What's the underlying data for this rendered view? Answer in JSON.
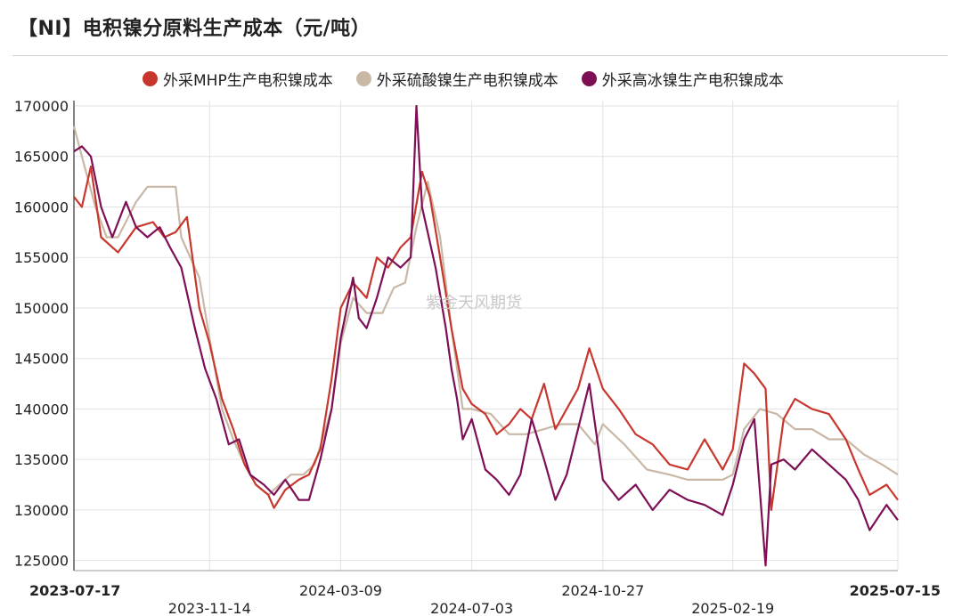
{
  "title": "【NI】电积镍分原料生产成本（元/吨）",
  "watermark": "紫金天风期货",
  "colors": {
    "mhp": "#c8372d",
    "sulfate": "#c9b8a6",
    "matte": "#7d0f55"
  },
  "chart_data": {
    "type": "line",
    "ylim": [
      124000,
      170000
    ],
    "y_ticks": [
      125000,
      130000,
      135000,
      140000,
      145000,
      150000,
      155000,
      160000,
      165000,
      170000
    ],
    "x_ticks_top": [
      "2023-07-17",
      "2024-03-09",
      "2024-10-27",
      "2025-07-15"
    ],
    "x_ticks_bottom": [
      "2023-11-14",
      "2024-07-03",
      "2025-02-19"
    ],
    "series": [
      {
        "name": "外采MHP生产电积镍成本",
        "color": "#c8372d",
        "points": [
          [
            "2023-07-17",
            161000
          ],
          [
            "2023-07-24",
            160000
          ],
          [
            "2023-08-01",
            164000
          ],
          [
            "2023-08-10",
            157000
          ],
          [
            "2023-08-25",
            155500
          ],
          [
            "2023-09-10",
            158000
          ],
          [
            "2023-09-25",
            158500
          ],
          [
            "2023-10-05",
            157000
          ],
          [
            "2023-10-15",
            157500
          ],
          [
            "2023-10-25",
            159000
          ],
          [
            "2023-11-05",
            150000
          ],
          [
            "2023-11-14",
            146500
          ],
          [
            "2023-11-25",
            141000
          ],
          [
            "2023-12-05",
            138000
          ],
          [
            "2023-12-15",
            134500
          ],
          [
            "2023-12-25",
            132500
          ],
          [
            "2024-01-05",
            131500
          ],
          [
            "2024-01-10",
            130200
          ],
          [
            "2024-01-20",
            132000
          ],
          [
            "2024-02-01",
            133000
          ],
          [
            "2024-02-10",
            133500
          ],
          [
            "2024-02-20",
            136000
          ],
          [
            "2024-03-01",
            143000
          ],
          [
            "2024-03-09",
            150000
          ],
          [
            "2024-03-20",
            152500
          ],
          [
            "2024-04-01",
            151000
          ],
          [
            "2024-04-10",
            155000
          ],
          [
            "2024-04-20",
            154000
          ],
          [
            "2024-05-01",
            156000
          ],
          [
            "2024-05-10",
            157000
          ],
          [
            "2024-05-20",
            163500
          ],
          [
            "2024-05-27",
            161000
          ],
          [
            "2024-06-05",
            155000
          ],
          [
            "2024-06-15",
            148000
          ],
          [
            "2024-06-25",
            142000
          ],
          [
            "2024-07-03",
            140500
          ],
          [
            "2024-07-15",
            139500
          ],
          [
            "2024-07-25",
            137500
          ],
          [
            "2024-08-05",
            138500
          ],
          [
            "2024-08-15",
            140000
          ],
          [
            "2024-08-25",
            139000
          ],
          [
            "2024-09-05",
            142500
          ],
          [
            "2024-09-15",
            138000
          ],
          [
            "2024-09-25",
            140000
          ],
          [
            "2024-10-05",
            142000
          ],
          [
            "2024-10-15",
            146000
          ],
          [
            "2024-10-27",
            142000
          ],
          [
            "2024-11-10",
            140000
          ],
          [
            "2024-11-25",
            137500
          ],
          [
            "2024-12-10",
            136500
          ],
          [
            "2024-12-25",
            134500
          ],
          [
            "2025-01-10",
            134000
          ],
          [
            "2025-01-25",
            137000
          ],
          [
            "2025-02-10",
            134000
          ],
          [
            "2025-02-19",
            136000
          ],
          [
            "2025-03-01",
            144500
          ],
          [
            "2025-03-10",
            143500
          ],
          [
            "2025-03-20",
            142000
          ],
          [
            "2025-03-25",
            130000
          ],
          [
            "2025-04-05",
            139000
          ],
          [
            "2025-04-15",
            141000
          ],
          [
            "2025-04-30",
            140000
          ],
          [
            "2025-05-15",
            139500
          ],
          [
            "2025-05-30",
            137000
          ],
          [
            "2025-06-10",
            134000
          ],
          [
            "2025-06-20",
            131500
          ],
          [
            "2025-07-05",
            132500
          ],
          [
            "2025-07-15",
            131000
          ]
        ]
      },
      {
        "name": "外采硫酸镍生产电积镍成本",
        "color": "#c9b8a6",
        "points": [
          [
            "2023-07-17",
            168000
          ],
          [
            "2023-07-24",
            165000
          ],
          [
            "2023-08-05",
            160000
          ],
          [
            "2023-08-15",
            157000
          ],
          [
            "2023-08-25",
            157000
          ],
          [
            "2023-09-10",
            160500
          ],
          [
            "2023-09-20",
            162000
          ],
          [
            "2023-10-05",
            162000
          ],
          [
            "2023-10-15",
            162000
          ],
          [
            "2023-10-20",
            157000
          ],
          [
            "2023-11-05",
            153000
          ],
          [
            "2023-11-14",
            147000
          ],
          [
            "2023-11-25",
            140000
          ],
          [
            "2023-12-05",
            137000
          ],
          [
            "2023-12-15",
            134500
          ],
          [
            "2023-12-25",
            132500
          ],
          [
            "2024-01-05",
            131500
          ],
          [
            "2024-01-15",
            132500
          ],
          [
            "2024-01-25",
            133500
          ],
          [
            "2024-02-05",
            133500
          ],
          [
            "2024-02-15",
            134500
          ],
          [
            "2024-03-01",
            140000
          ],
          [
            "2024-03-09",
            146500
          ],
          [
            "2024-03-20",
            151000
          ],
          [
            "2024-04-01",
            149500
          ],
          [
            "2024-04-15",
            149500
          ],
          [
            "2024-04-25",
            152000
          ],
          [
            "2024-05-05",
            152500
          ],
          [
            "2024-05-15",
            158000
          ],
          [
            "2024-05-25",
            162500
          ],
          [
            "2024-06-05",
            157000
          ],
          [
            "2024-06-15",
            148000
          ],
          [
            "2024-06-25",
            140000
          ],
          [
            "2024-07-03",
            140000
          ],
          [
            "2024-07-20",
            139500
          ],
          [
            "2024-08-05",
            137500
          ],
          [
            "2024-08-20",
            137500
          ],
          [
            "2024-09-05",
            138000
          ],
          [
            "2024-09-20",
            138500
          ],
          [
            "2024-10-05",
            138500
          ],
          [
            "2024-10-20",
            136500
          ],
          [
            "2024-10-27",
            138500
          ],
          [
            "2024-11-15",
            136500
          ],
          [
            "2024-12-05",
            134000
          ],
          [
            "2024-12-25",
            133500
          ],
          [
            "2025-01-10",
            133000
          ],
          [
            "2025-01-25",
            133000
          ],
          [
            "2025-02-10",
            133000
          ],
          [
            "2025-02-19",
            133500
          ],
          [
            "2025-03-01",
            138000
          ],
          [
            "2025-03-15",
            140000
          ],
          [
            "2025-03-30",
            139500
          ],
          [
            "2025-04-15",
            138000
          ],
          [
            "2025-04-30",
            138000
          ],
          [
            "2025-05-15",
            137000
          ],
          [
            "2025-05-30",
            137000
          ],
          [
            "2025-06-15",
            135500
          ],
          [
            "2025-07-01",
            134500
          ],
          [
            "2025-07-15",
            133500
          ]
        ]
      },
      {
        "name": "外采高冰镍生产电积镍成本",
        "color": "#7d0f55",
        "points": [
          [
            "2023-07-17",
            165500
          ],
          [
            "2023-07-24",
            166000
          ],
          [
            "2023-08-01",
            165000
          ],
          [
            "2023-08-10",
            160000
          ],
          [
            "2023-08-20",
            157000
          ],
          [
            "2023-09-01",
            160500
          ],
          [
            "2023-09-10",
            158000
          ],
          [
            "2023-09-20",
            157000
          ],
          [
            "2023-10-01",
            158000
          ],
          [
            "2023-10-10",
            156000
          ],
          [
            "2023-10-20",
            154000
          ],
          [
            "2023-11-01",
            148000
          ],
          [
            "2023-11-10",
            144000
          ],
          [
            "2023-11-20",
            141000
          ],
          [
            "2023-12-01",
            136500
          ],
          [
            "2023-12-10",
            137000
          ],
          [
            "2023-12-20",
            133500
          ],
          [
            "2024-01-01",
            132500
          ],
          [
            "2024-01-10",
            131500
          ],
          [
            "2024-01-20",
            133000
          ],
          [
            "2024-02-01",
            131000
          ],
          [
            "2024-02-10",
            131000
          ],
          [
            "2024-02-20",
            135000
          ],
          [
            "2024-03-01",
            140000
          ],
          [
            "2024-03-09",
            147000
          ],
          [
            "2024-03-20",
            153000
          ],
          [
            "2024-03-25",
            149000
          ],
          [
            "2024-04-01",
            148000
          ],
          [
            "2024-04-10",
            151000
          ],
          [
            "2024-04-20",
            155000
          ],
          [
            "2024-05-01",
            154000
          ],
          [
            "2024-05-10",
            155000
          ],
          [
            "2024-05-15",
            170000
          ],
          [
            "2024-05-20",
            160000
          ],
          [
            "2024-06-01",
            154000
          ],
          [
            "2024-06-10",
            148000
          ],
          [
            "2024-06-15",
            144000
          ],
          [
            "2024-06-20",
            141000
          ],
          [
            "2024-06-25",
            137000
          ],
          [
            "2024-07-03",
            139000
          ],
          [
            "2024-07-15",
            134000
          ],
          [
            "2024-07-25",
            133000
          ],
          [
            "2024-08-05",
            131500
          ],
          [
            "2024-08-15",
            133500
          ],
          [
            "2024-08-25",
            139000
          ],
          [
            "2024-09-05",
            135000
          ],
          [
            "2024-09-15",
            131000
          ],
          [
            "2024-09-25",
            133500
          ],
          [
            "2024-10-05",
            138000
          ],
          [
            "2024-10-15",
            142500
          ],
          [
            "2024-10-27",
            133000
          ],
          [
            "2024-11-10",
            131000
          ],
          [
            "2024-11-25",
            132500
          ],
          [
            "2024-12-10",
            130000
          ],
          [
            "2024-12-25",
            132000
          ],
          [
            "2025-01-10",
            131000
          ],
          [
            "2025-01-25",
            130500
          ],
          [
            "2025-02-10",
            129500
          ],
          [
            "2025-02-19",
            132500
          ],
          [
            "2025-03-01",
            137000
          ],
          [
            "2025-03-10",
            139000
          ],
          [
            "2025-03-20",
            124500
          ],
          [
            "2025-03-25",
            134500
          ],
          [
            "2025-04-05",
            135000
          ],
          [
            "2025-04-15",
            134000
          ],
          [
            "2025-04-30",
            136000
          ],
          [
            "2025-05-15",
            134500
          ],
          [
            "2025-05-30",
            133000
          ],
          [
            "2025-06-10",
            131000
          ],
          [
            "2025-06-20",
            128000
          ],
          [
            "2025-07-05",
            130500
          ],
          [
            "2025-07-15",
            129000
          ]
        ]
      }
    ]
  }
}
